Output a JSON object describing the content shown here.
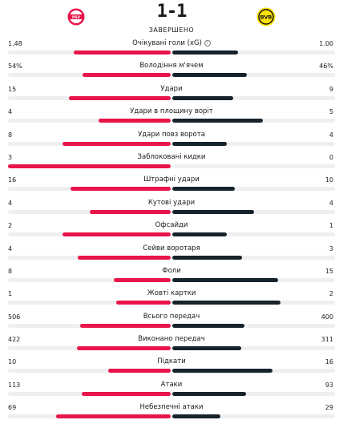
{
  "match": {
    "score": "1-1",
    "status": "ЗАВЕРШЕНО",
    "home_logo_icon": "psv-logo-icon",
    "away_logo_icon": "bvb-logo-icon"
  },
  "colors": {
    "home": "#e8154a",
    "away": "#17232b",
    "track": "#eeeff1"
  },
  "stats": [
    {
      "label": "Очікувані голи (xG)",
      "home": "1.48",
      "away": "1.00",
      "info": true
    },
    {
      "label": "Володіння м'ячем",
      "home": "54%",
      "away": "46%"
    },
    {
      "label": "Удари",
      "home": "15",
      "away": "9"
    },
    {
      "label": "Удари в площину воріт",
      "home": "4",
      "away": "5"
    },
    {
      "label": "Удари повз ворота",
      "home": "8",
      "away": "4"
    },
    {
      "label": "Заблоковані кидки",
      "home": "3",
      "away": "0"
    },
    {
      "label": "Штрафні удари",
      "home": "16",
      "away": "10"
    },
    {
      "label": "Кутові удари",
      "home": "4",
      "away": "4"
    },
    {
      "label": "Офсайди",
      "home": "2",
      "away": "1"
    },
    {
      "label": "Сейви воротаря",
      "home": "4",
      "away": "3"
    },
    {
      "label": "Фоли",
      "home": "8",
      "away": "15"
    },
    {
      "label": "Жовті картки",
      "home": "1",
      "away": "2"
    },
    {
      "label": "Всього передач",
      "home": "506",
      "away": "400"
    },
    {
      "label": "Виконано передач",
      "home": "422",
      "away": "311"
    },
    {
      "label": "Підкати",
      "home": "10",
      "away": "16"
    },
    {
      "label": "Атаки",
      "home": "113",
      "away": "93"
    },
    {
      "label": "Небезпечні атаки",
      "home": "69",
      "away": "29"
    }
  ]
}
